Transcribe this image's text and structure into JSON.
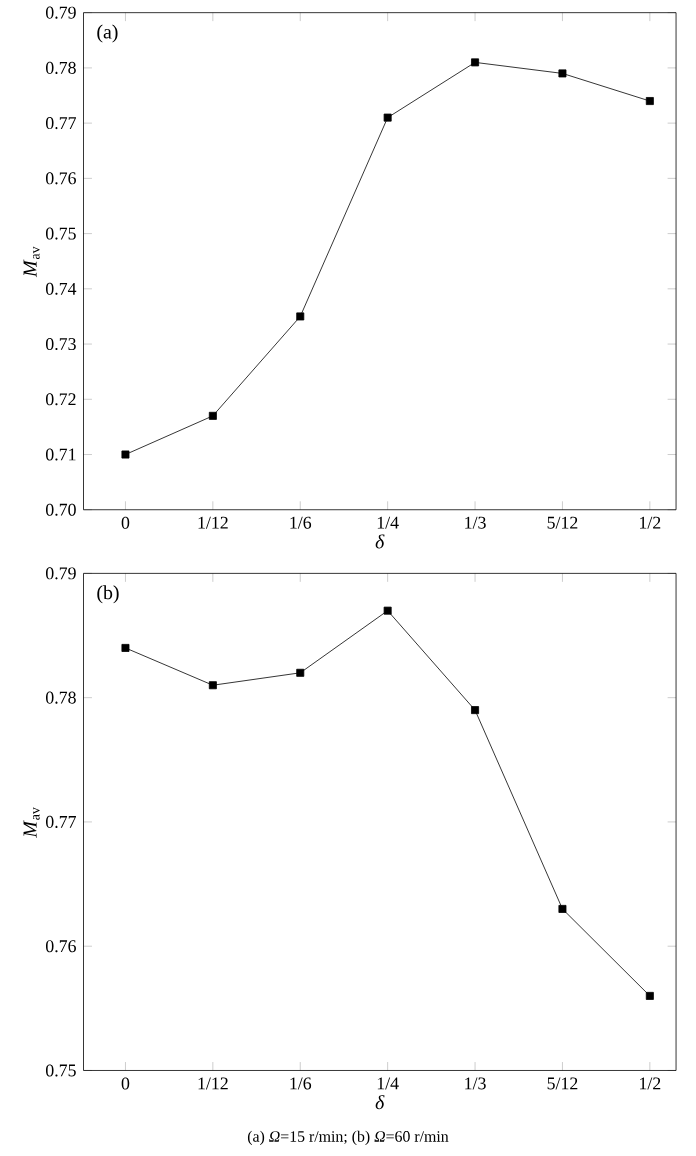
{
  "chart_data": [
    {
      "type": "line",
      "title": "(a)",
      "xlabel": "*δ*",
      "ylabel": "*M*$_{av}$",
      "categories": [
        "0",
        "1/12",
        "1/6",
        "1/4",
        "1/3",
        "5/12",
        "1/2"
      ],
      "series": [
        {
          "color": "#000000",
          "values": [
            0.71,
            0.717,
            0.735,
            0.771,
            0.781,
            0.779,
            0.774
          ]
        }
      ],
      "ylim": [
        0.7,
        0.79
      ],
      "yticks": [
        {
          "value": 0.7,
          "label": "0.70"
        },
        {
          "value": 0.71,
          "label": "0.71"
        },
        {
          "value": 0.72,
          "label": "0.72"
        },
        {
          "value": 0.73,
          "label": "0.73"
        },
        {
          "value": 0.74,
          "label": "0.74"
        },
        {
          "value": 0.75,
          "label": "0.75"
        },
        {
          "value": 0.76,
          "label": "0.76"
        },
        {
          "value": 0.77,
          "label": "0.77"
        },
        {
          "value": 0.78,
          "label": "0.78"
        },
        {
          "value": 0.79,
          "label": "0.79"
        }
      ],
      "marker": "square",
      "line_style": "solid"
    },
    {
      "type": "line",
      "title": "(b)",
      "xlabel": "*δ*",
      "ylabel": "*M*$_{av}$",
      "categories": [
        "0",
        "1/12",
        "1/6",
        "1/4",
        "1/3",
        "5/12",
        "1/2"
      ],
      "series": [
        {
          "color": "#000000",
          "values": [
            0.784,
            0.781,
            0.782,
            0.787,
            0.779,
            0.763,
            0.756
          ]
        }
      ],
      "ylim": [
        0.75,
        0.79
      ],
      "yticks": [
        {
          "value": 0.75,
          "label": "0.75"
        },
        {
          "value": 0.76,
          "label": "0.76"
        },
        {
          "value": 0.77,
          "label": "0.77"
        },
        {
          "value": 0.78,
          "label": "0.78"
        },
        {
          "value": 0.79,
          "label": "0.79"
        }
      ],
      "marker": "square",
      "line_style": "solid",
      "annotations": [
        "(a) *Ω*=15 r/min; (b) *Ω*=60 r/min"
      ]
    }
  ]
}
